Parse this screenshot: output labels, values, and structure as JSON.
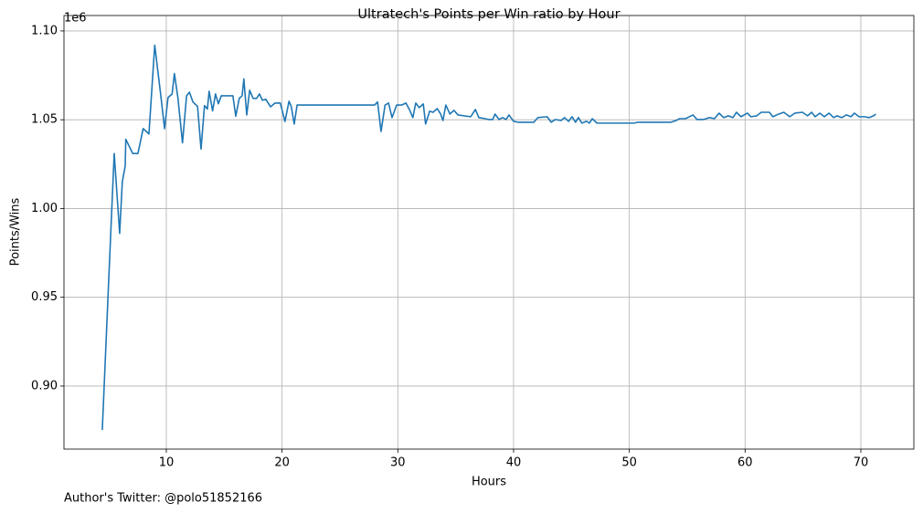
{
  "chart_data": {
    "type": "line",
    "title": "Ultratech's Points per Win ratio by Hour",
    "xlabel": "Hours",
    "ylabel": "Points/Wins",
    "y_offset_label": "1e6",
    "footer": "Author's Twitter: @polo51852166",
    "xlim": [
      1.16,
      74.58
    ],
    "ylim": [
      0.8645,
      1.1087
    ],
    "xticks": [
      10,
      20,
      30,
      40,
      50,
      60,
      70
    ],
    "yticks": [
      {
        "value": 0.9,
        "label": "0.90"
      },
      {
        "value": 0.95,
        "label": "0.95"
      },
      {
        "value": 1.0,
        "label": "1.00"
      },
      {
        "value": 1.05,
        "label": "1.05"
      },
      {
        "value": 1.1,
        "label": "1.10"
      }
    ],
    "grid": true,
    "series": [
      {
        "color": "#1f77b4",
        "x": [
          4.47,
          5.1,
          5.5,
          5.97,
          6.2,
          6.45,
          6.5,
          7.1,
          7.55,
          8.0,
          8.5,
          9.0,
          9.5,
          9.85,
          10.15,
          10.5,
          10.7,
          11.0,
          11.4,
          11.75,
          12.0,
          12.3,
          12.7,
          13.0,
          13.3,
          13.55,
          13.7,
          14.0,
          14.25,
          14.5,
          14.75,
          15.75,
          16.0,
          16.3,
          16.55,
          16.7,
          16.95,
          17.2,
          17.5,
          17.8,
          18.05,
          18.3,
          18.6,
          19.0,
          19.4,
          19.85,
          20.25,
          20.6,
          20.8,
          21.05,
          21.3,
          21.7,
          28.0,
          28.25,
          28.55,
          28.9,
          29.2,
          29.5,
          29.9,
          30.35,
          30.7,
          31.0,
          31.3,
          31.55,
          31.85,
          32.2,
          32.4,
          32.75,
          33.05,
          33.4,
          33.7,
          33.9,
          34.15,
          34.5,
          34.85,
          35.2,
          36.3,
          36.7,
          37.0,
          37.55,
          37.85,
          38.2,
          38.4,
          38.75,
          39.05,
          39.35,
          39.6,
          40.0,
          40.4,
          41.75,
          42.1,
          42.9,
          43.25,
          43.6,
          44.1,
          44.4,
          44.75,
          45.05,
          45.35,
          45.6,
          45.9,
          46.3,
          46.55,
          46.8,
          47.2,
          50.4,
          50.75,
          53.6,
          54.05,
          54.35,
          54.85,
          55.5,
          55.85,
          56.4,
          56.9,
          57.35,
          57.75,
          58.15,
          58.55,
          58.95,
          59.25,
          59.65,
          60.2,
          60.5,
          61.0,
          61.4,
          62.1,
          62.4,
          62.9,
          63.35,
          63.85,
          64.3,
          64.95,
          65.4,
          65.75,
          66.05,
          66.45,
          66.85,
          67.25,
          67.65,
          67.95,
          68.35,
          68.75,
          69.15,
          69.45,
          69.85,
          70.3,
          70.7,
          71.1,
          71.3
        ],
        "values": [
          0.8753,
          0.971,
          1.031,
          0.986,
          1.015,
          1.024,
          1.039,
          1.031,
          1.031,
          1.045,
          1.042,
          1.092,
          1.065,
          1.045,
          1.0625,
          1.0645,
          1.076,
          1.0625,
          1.037,
          1.0635,
          1.0655,
          1.06,
          1.0575,
          1.0335,
          1.058,
          1.056,
          1.066,
          1.055,
          1.0645,
          1.059,
          1.0635,
          1.0635,
          1.052,
          1.062,
          1.0635,
          1.073,
          1.0527,
          1.0666,
          1.062,
          1.062,
          1.0645,
          1.061,
          1.0615,
          1.0573,
          1.0594,
          1.0594,
          1.049,
          1.0604,
          1.0573,
          1.0476,
          1.0583,
          1.0583,
          1.0583,
          1.06,
          1.0434,
          1.0583,
          1.0594,
          1.0512,
          1.0583,
          1.0583,
          1.0594,
          1.0558,
          1.0512,
          1.0594,
          1.0568,
          1.0589,
          1.0476,
          1.0548,
          1.0542,
          1.0563,
          1.0532,
          1.0496,
          1.0583,
          1.0532,
          1.0553,
          1.0527,
          1.0517,
          1.0558,
          1.0512,
          1.0506,
          1.0501,
          1.0501,
          1.0532,
          1.0501,
          1.0512,
          1.0501,
          1.0527,
          1.0491,
          1.0486,
          1.0486,
          1.0512,
          1.0517,
          1.0486,
          1.0501,
          1.0496,
          1.0512,
          1.0491,
          1.0517,
          1.0486,
          1.0512,
          1.0481,
          1.0491,
          1.0481,
          1.0506,
          1.0481,
          1.0481,
          1.0486,
          1.0486,
          1.0496,
          1.0506,
          1.0506,
          1.0527,
          1.0501,
          1.0501,
          1.0512,
          1.0506,
          1.0537,
          1.0512,
          1.0522,
          1.0512,
          1.0542,
          1.0517,
          1.0537,
          1.0517,
          1.0522,
          1.0542,
          1.0542,
          1.0517,
          1.0532,
          1.0542,
          1.0517,
          1.0537,
          1.0542,
          1.0522,
          1.0542,
          1.0517,
          1.0537,
          1.0517,
          1.0537,
          1.0512,
          1.0522,
          1.0512,
          1.0527,
          1.0517,
          1.0537,
          1.0517,
          1.0517,
          1.0512,
          1.0522,
          1.0532
        ]
      }
    ]
  }
}
